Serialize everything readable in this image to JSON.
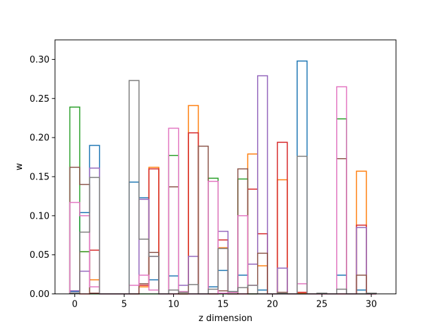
{
  "chart_data": {
    "type": "bar",
    "style": "step histogram",
    "xlabel": "z dimension",
    "ylabel": "w",
    "xlim": [
      -2,
      32.5
    ],
    "ylim": [
      0,
      0.325
    ],
    "xticks": [
      0,
      5,
      10,
      15,
      20,
      25,
      30
    ],
    "yticks": [
      0.0,
      0.05,
      0.1,
      0.15,
      0.2,
      0.25,
      0.3
    ],
    "xtick_labels": [
      "0",
      "5",
      "10",
      "15",
      "20",
      "25",
      "30"
    ],
    "ytick_labels": [
      "0.00",
      "0.05",
      "0.10",
      "0.15",
      "0.20",
      "0.25",
      "0.30"
    ],
    "grid": false,
    "bin_width": 1,
    "x": [
      0,
      1,
      2,
      3,
      4,
      5,
      6,
      7,
      8,
      9,
      10,
      11,
      12,
      13,
      14,
      15,
      16,
      17,
      18,
      19,
      20,
      21,
      22,
      23,
      24,
      25,
      26,
      27,
      28,
      29,
      30
    ],
    "series": [
      {
        "color": "#1f77b4",
        "values": [
          0.003,
          0.104,
          0.19,
          0,
          0,
          0,
          0.143,
          0.123,
          0.018,
          0,
          0.023,
          0,
          0,
          0,
          0.009,
          0.03,
          0.003,
          0.024,
          0,
          0.005,
          0,
          0,
          0,
          0.298,
          0,
          0,
          0,
          0.024,
          0,
          0.005,
          0
        ]
      },
      {
        "color": "#ff7f0e",
        "values": [
          0.001,
          0.054,
          0.018,
          0,
          0,
          0,
          0,
          0.009,
          0.162,
          0,
          0,
          0,
          0.241,
          0,
          0,
          0.059,
          0,
          0,
          0.179,
          0.036,
          0,
          0.146,
          0,
          0.001,
          0,
          0,
          0,
          0,
          0,
          0.157,
          0
        ]
      },
      {
        "color": "#2ca02c",
        "values": [
          0.239,
          0.054,
          0,
          0,
          0,
          0,
          0,
          0,
          0,
          0,
          0.177,
          0,
          0,
          0,
          0.148,
          0,
          0,
          0.147,
          0,
          0,
          0,
          0,
          0,
          0,
          0,
          0,
          0,
          0.224,
          0,
          0,
          0
        ]
      },
      {
        "color": "#d62728",
        "values": [
          0.001,
          0,
          0.056,
          0,
          0,
          0,
          0,
          0.011,
          0.16,
          0,
          0,
          0,
          0.206,
          0,
          0,
          0.069,
          0,
          0,
          0.134,
          0.077,
          0,
          0.194,
          0,
          0.002,
          0,
          0,
          0,
          0,
          0,
          0.088,
          0
        ]
      },
      {
        "color": "#9467bd",
        "values": [
          0.004,
          0.029,
          0.161,
          0,
          0,
          0,
          0,
          0.121,
          0.048,
          0,
          0,
          0.011,
          0.048,
          0,
          0,
          0.08,
          0,
          0,
          0.038,
          0.279,
          0,
          0.033,
          0,
          0,
          0,
          0,
          0,
          0,
          0,
          0.085,
          0
        ]
      },
      {
        "color": "#8c564b",
        "values": [
          0.162,
          0.14,
          0.001,
          0,
          0,
          0,
          0,
          0.013,
          0.053,
          0,
          0.137,
          0,
          0,
          0.189,
          0,
          0.004,
          0,
          0.16,
          0,
          0.052,
          0,
          0.002,
          0,
          0,
          0,
          0,
          0,
          0.173,
          0,
          0.024,
          0
        ]
      },
      {
        "color": "#e377c2",
        "values": [
          0.117,
          0.1,
          0.009,
          0,
          0,
          0,
          0.011,
          0.024,
          0.005,
          0,
          0.212,
          0.003,
          0,
          0,
          0.144,
          0.001,
          0.002,
          0.1,
          0.011,
          0,
          0,
          0,
          0,
          0.013,
          0,
          0,
          0,
          0.265,
          0,
          0,
          0
        ]
      },
      {
        "color": "#7f7f7f",
        "values": [
          0.001,
          0.079,
          0.149,
          0,
          0,
          0,
          0.273,
          0.07,
          0.048,
          0,
          0.005,
          0.002,
          0.012,
          0,
          0.006,
          0.058,
          0.003,
          0.008,
          0.011,
          0,
          0,
          0.001,
          0,
          0.176,
          0,
          0.001,
          0,
          0.006,
          0,
          0,
          0.001
        ]
      }
    ]
  }
}
